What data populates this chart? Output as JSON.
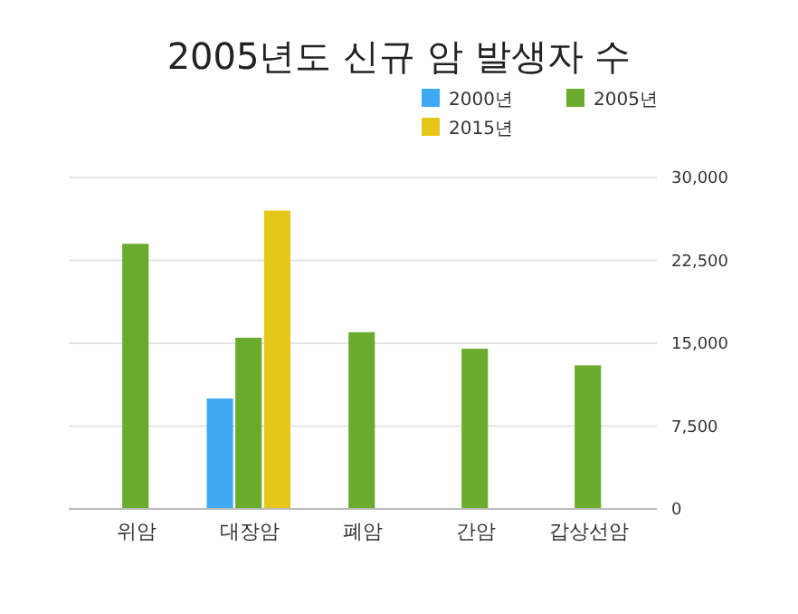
{
  "chart_data": {
    "type": "bar",
    "title": "2005년도 신규 암 발생자 수",
    "categories": [
      "위암",
      "대장암",
      "폐암",
      "간암",
      "갑상선암"
    ],
    "series": [
      {
        "name": "2000년",
        "color": "#3fa9f5",
        "values": [
          null,
          10000,
          null,
          null,
          null
        ]
      },
      {
        "name": "2005년",
        "color": "#6aab2e",
        "values": [
          24000,
          15500,
          16000,
          14500,
          13000
        ]
      },
      {
        "name": "2015년",
        "color": "#e6c619",
        "values": [
          null,
          27000,
          null,
          null,
          null
        ]
      }
    ],
    "ylim": [
      0,
      30000
    ],
    "yticks": [
      0,
      {
        "value": 7500,
        "label": "7,500"
      },
      {
        "value": 15000,
        "label": "15,000"
      },
      {
        "value": 22500,
        "label": "22,500"
      },
      {
        "value": 30000,
        "label": "30,000"
      }
    ],
    "grid": "y",
    "legend": "top right"
  }
}
